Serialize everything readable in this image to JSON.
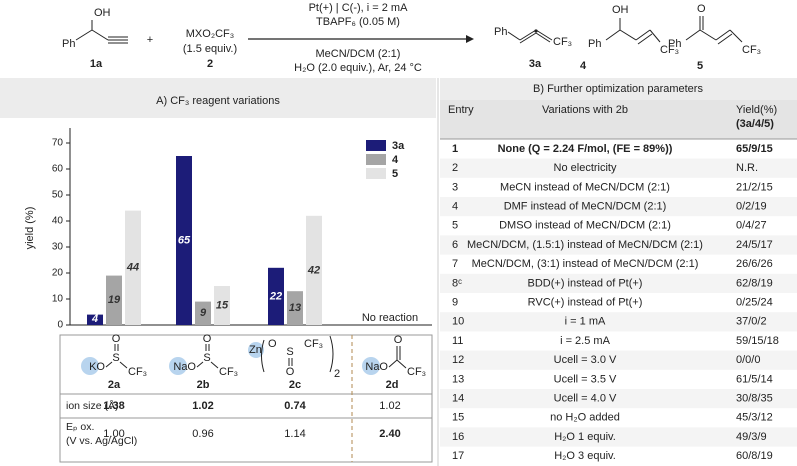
{
  "scheme": {
    "reactant": {
      "labels": [
        "OH",
        "Ph"
      ],
      "name": "1a"
    },
    "plus": "+",
    "reagent": {
      "formula": "MXO₂CF₃",
      "equiv": "(1.5 equiv.)",
      "name": "2"
    },
    "conditions": [
      "Pt(+) | C(-), i = 2 mA",
      "TBAPF₆ (0.05 M)",
      "MeCN/DCM (2:1)",
      "H₂O (2.0 equiv.), Ar, 24 °C"
    ],
    "products": [
      {
        "labels": [
          "Ph",
          "CF₃"
        ],
        "name": "3a"
      },
      {
        "labels": [
          "OH",
          "Ph",
          "CF₃"
        ],
        "name": "4"
      },
      {
        "labels": [
          "O",
          "Ph",
          "CF₃"
        ],
        "name": "5"
      }
    ]
  },
  "chart_data": {
    "type": "bar",
    "title": "A) CF₃ reagent variations",
    "y_label": "yield (%)",
    "categories": [
      "2a",
      "2b",
      "2c",
      "2d"
    ],
    "series": [
      {
        "name": "3a",
        "color": "#1c1c78",
        "values": [
          4,
          65,
          22,
          null
        ]
      },
      {
        "name": "4",
        "color": "#a5a5a5",
        "values": [
          19,
          9,
          13,
          null
        ]
      },
      {
        "name": "5",
        "color": "#e3e3e3",
        "values": [
          44,
          15,
          42,
          null
        ]
      }
    ],
    "annotation": "No reaction",
    "ylim": [
      0,
      75
    ],
    "yticks": [
      0,
      10,
      20,
      30,
      40,
      50,
      60,
      70
    ],
    "legend": "top-right"
  },
  "reagents": [
    {
      "texts": [
        "KO",
        "S",
        "O",
        "CF₃"
      ]
    },
    {
      "texts": [
        "NaO",
        "S",
        "O",
        "CF₃"
      ]
    },
    {
      "texts": [
        "Zn",
        "O",
        "S",
        "O",
        "CF₃",
        "2"
      ]
    },
    {
      "texts": [
        "NaO",
        "O",
        "CF₃"
      ]
    }
  ],
  "reagent_rows": [
    {
      "label": [
        "ion size (Å)"
      ],
      "values": [
        "1.38",
        "1.02",
        "0.74",
        "1.02"
      ],
      "bold": [
        true,
        true,
        true,
        false
      ]
    },
    {
      "label": [
        "Eₚ ox.",
        "(V vs. Ag/AgCl)"
      ],
      "values": [
        "1.00",
        "0.96",
        "1.14",
        "2.40"
      ],
      "bold": [
        false,
        false,
        false,
        true
      ]
    }
  ],
  "table": {
    "title": "B) Further optimization parameters",
    "header": [
      "Entry",
      "Variations with 2b",
      "Yield(%)",
      "(3a/4/5)"
    ],
    "rows": [
      [
        "1",
        "None (Q = 2.24 F/mol, (FE = 89%))",
        "65/9/15"
      ],
      [
        "2",
        "No electricity",
        "N.R."
      ],
      [
        "3",
        "MeCN instead of MeCN/DCM (2:1)",
        "21/2/15"
      ],
      [
        "4",
        "DMF instead of MeCN/DCM (2:1)",
        "0/2/19"
      ],
      [
        "5",
        "DMSO instead of MeCN/DCM (2:1)",
        "0/4/27"
      ],
      [
        "6",
        "MeCN/DCM, (1.5:1) instead of MeCN/DCM (2:1)",
        "24/5/17"
      ],
      [
        "7",
        "MeCN/DCM, (3:1) instead of MeCN/DCM (2:1)",
        "26/6/26"
      ],
      [
        "8ᶜ",
        "BDD(+) instead of Pt(+)",
        "62/8/19"
      ],
      [
        "9",
        "RVC(+) instead of Pt(+)",
        "0/25/24"
      ],
      [
        "10",
        "i = 1 mA",
        "37/0/2"
      ],
      [
        "11",
        "i = 2.5 mA",
        "59/15/18"
      ],
      [
        "12",
        "Ucell = 3.0 V",
        "0/0/0"
      ],
      [
        "13",
        "Ucell = 3.5 V",
        "61/5/14"
      ],
      [
        "14",
        "Ucell = 4.0 V",
        "30/8/35"
      ],
      [
        "15",
        "no H₂O added",
        "45/3/12"
      ],
      [
        "16",
        "H₂O 1 equiv.",
        "49/3/9"
      ],
      [
        "17",
        "H₂O 3 equiv.",
        "60/8/19"
      ]
    ]
  }
}
